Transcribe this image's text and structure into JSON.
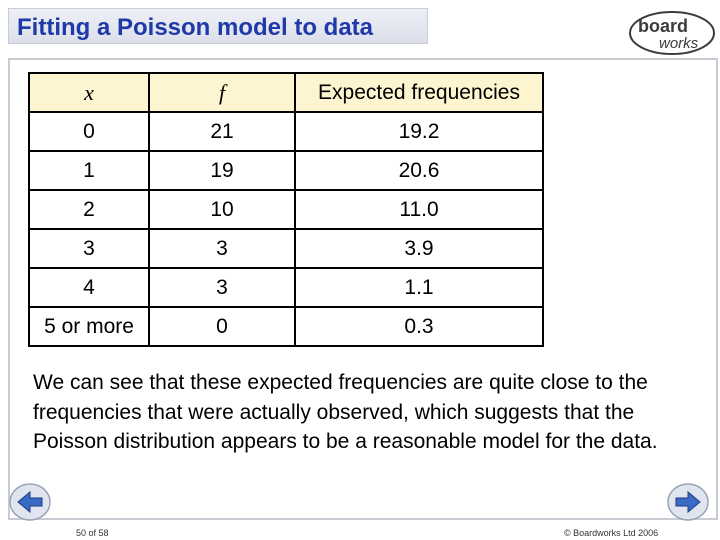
{
  "slide": {
    "title": "Fitting a Poisson model to data",
    "logo": {
      "line1": "board",
      "line2": "works"
    }
  },
  "table": {
    "headers": [
      "x",
      "f",
      "Expected frequencies"
    ],
    "rows": [
      [
        "0",
        "21",
        "19.2"
      ],
      [
        "1",
        "19",
        "20.6"
      ],
      [
        "2",
        "10",
        "11.0"
      ],
      [
        "3",
        "3",
        "3.9"
      ],
      [
        "4",
        "3",
        "1.1"
      ],
      [
        "5 or more",
        "0",
        "0.3"
      ]
    ]
  },
  "body_text": "We can see that these expected frequencies are quite close to the frequencies that were actually observed, which suggests that the Poisson distribution appears to be a reasonable model for the data.",
  "footer": {
    "page": "50 of 58",
    "copyright": "© Boardworks Ltd 2006"
  },
  "icons": {
    "prev": "arrow-left-icon",
    "next": "arrow-right-icon"
  },
  "colors": {
    "title": "#1f3aa8",
    "header_fill": "#fdf4d0",
    "nav_arrow": "#3a6bc4"
  }
}
